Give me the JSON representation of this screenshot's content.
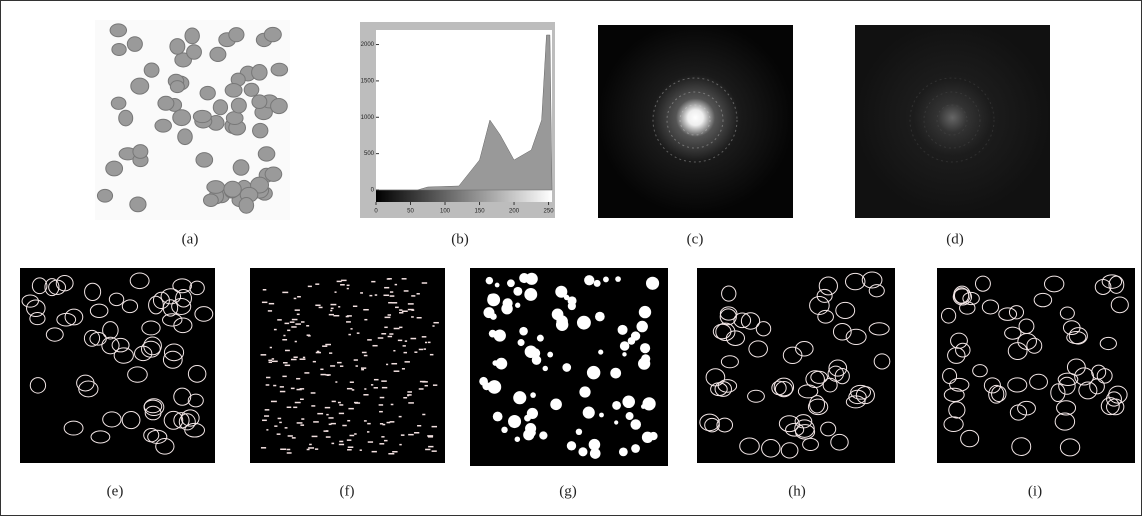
{
  "figure": {
    "panels": [
      {
        "label": "(a)"
      },
      {
        "label": "(b)"
      },
      {
        "label": "(c)"
      },
      {
        "label": "(d)"
      },
      {
        "label": "(e)"
      },
      {
        "label": "(f)"
      },
      {
        "label": "(g)"
      },
      {
        "label": "(h)"
      },
      {
        "label": "(i)"
      }
    ],
    "histogram": {
      "xlim": [
        0,
        255
      ],
      "ylim": [
        0,
        2200
      ],
      "xticks": [
        0,
        50,
        100,
        150,
        200,
        250
      ],
      "yticks": [
        0,
        500,
        1000,
        1500,
        2000
      ]
    }
  }
}
